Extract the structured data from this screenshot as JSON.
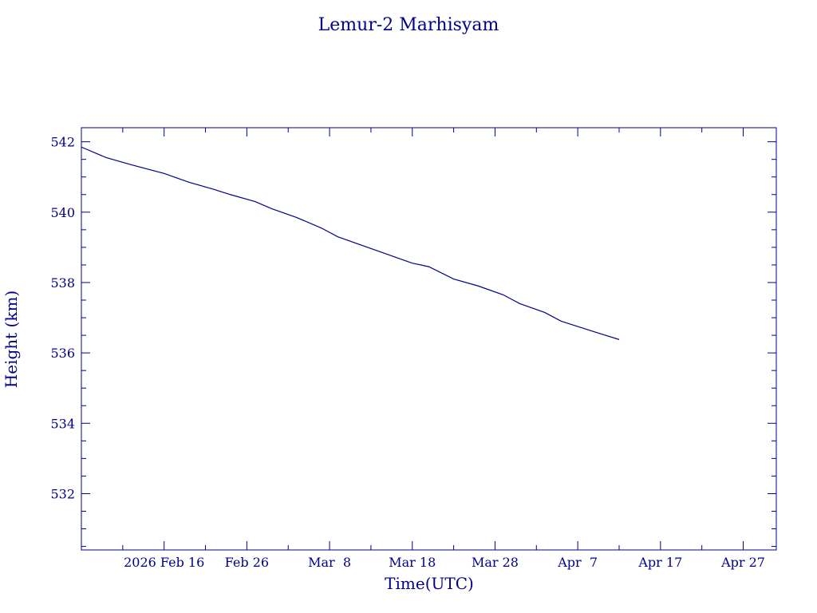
{
  "chart_data": {
    "type": "line",
    "title": "Lemur-2 Marhisyam",
    "xlabel": "Time(UTC)",
    "ylabel": "Height (km)",
    "xlim": [
      "2026-02-06",
      "2026-05-01"
    ],
    "ylim": [
      530.4,
      542.4
    ],
    "x_tick_labels": [
      "2026 Feb 16",
      "Feb 26",
      "Mar  8",
      "Mar 18",
      "Mar 28",
      "Apr  7",
      "Apr 17",
      "Apr 27"
    ],
    "x_tick_dates": [
      "2026-02-16",
      "2026-02-26",
      "2026-03-08",
      "2026-03-18",
      "2026-03-28",
      "2026-04-07",
      "2026-04-17",
      "2026-04-27"
    ],
    "y_tick_labels": [
      "542",
      "540",
      "538",
      "536",
      "534",
      "532"
    ],
    "y_ticks": [
      542,
      540,
      538,
      536,
      534,
      532
    ],
    "grid": false,
    "series": [
      {
        "x": [
          "2026-02-06",
          "2026-02-09",
          "2026-02-12",
          "2026-02-16",
          "2026-02-19",
          "2026-02-22",
          "2026-02-24",
          "2026-02-27",
          "2026-03-01",
          "2026-03-04",
          "2026-03-07",
          "2026-03-09",
          "2026-03-12",
          "2026-03-15",
          "2026-03-18",
          "2026-03-20",
          "2026-03-23",
          "2026-03-26",
          "2026-03-29",
          "2026-03-31",
          "2026-04-03",
          "2026-04-05",
          "2026-04-07",
          "2026-04-09",
          "2026-04-12"
        ],
        "y": [
          541.85,
          541.55,
          541.35,
          541.1,
          540.85,
          540.65,
          540.5,
          540.3,
          540.1,
          539.85,
          539.55,
          539.3,
          539.05,
          538.8,
          538.55,
          538.45,
          538.1,
          537.9,
          537.65,
          537.4,
          537.15,
          536.9,
          536.75,
          536.6,
          536.38
        ]
      }
    ]
  }
}
